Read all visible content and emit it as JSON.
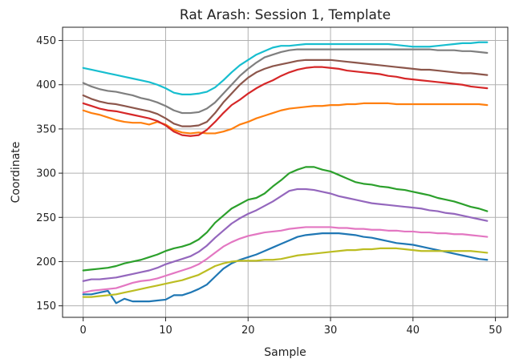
{
  "chart_data": {
    "type": "line",
    "title": "Rat Arash: Session 1, Template",
    "xlabel": "Sample",
    "ylabel": "Coordinate",
    "xlim": [
      -2.5,
      51.5
    ],
    "ylim": [
      137,
      465
    ],
    "xticks": [
      0,
      10,
      20,
      30,
      40,
      50
    ],
    "yticks": [
      150,
      200,
      250,
      300,
      350,
      400,
      450
    ],
    "grid": true,
    "x": [
      0,
      1,
      2,
      3,
      4,
      5,
      6,
      7,
      8,
      9,
      10,
      11,
      12,
      13,
      14,
      15,
      16,
      17,
      18,
      19,
      20,
      21,
      22,
      23,
      24,
      25,
      26,
      27,
      28,
      29,
      30,
      31,
      32,
      33,
      34,
      35,
      36,
      37,
      38,
      39,
      40,
      41,
      42,
      43,
      44,
      45,
      46,
      47,
      48,
      49
    ],
    "series": [
      {
        "color": "#1f77b4",
        "values": [
          163,
          163,
          165,
          167,
          153,
          158,
          155,
          155,
          155,
          156,
          157,
          162,
          162,
          165,
          169,
          174,
          183,
          192,
          198,
          202,
          205,
          208,
          212,
          216,
          220,
          224,
          228,
          230,
          231,
          232,
          232,
          232,
          231,
          230,
          228,
          227,
          225,
          223,
          221,
          220,
          219,
          217,
          215,
          213,
          211,
          209,
          207,
          205,
          203,
          202
        ]
      },
      {
        "color": "#ff7f0e",
        "values": [
          371,
          368,
          366,
          363,
          360,
          358,
          357,
          357,
          355,
          358,
          355,
          349,
          346,
          345,
          346,
          345,
          345,
          347,
          350,
          355,
          358,
          362,
          365,
          368,
          371,
          373,
          374,
          375,
          376,
          376,
          377,
          377,
          378,
          378,
          379,
          379,
          379,
          379,
          378,
          378,
          378,
          378,
          378,
          378,
          378,
          378,
          378,
          378,
          378,
          377
        ]
      },
      {
        "color": "#2ca02c",
        "values": [
          190,
          191,
          192,
          193,
          195,
          198,
          200,
          202,
          205,
          208,
          212,
          215,
          217,
          220,
          225,
          233,
          244,
          252,
          260,
          265,
          270,
          272,
          277,
          285,
          292,
          300,
          304,
          307,
          307,
          304,
          302,
          298,
          294,
          290,
          288,
          287,
          285,
          284,
          282,
          281,
          279,
          277,
          275,
          272,
          270,
          268,
          265,
          262,
          260,
          257
        ]
      },
      {
        "color": "#d62728",
        "values": [
          379,
          376,
          373,
          371,
          370,
          368,
          366,
          364,
          362,
          359,
          354,
          347,
          343,
          342,
          343,
          349,
          358,
          368,
          377,
          383,
          390,
          396,
          401,
          405,
          410,
          414,
          417,
          419,
          420,
          420,
          419,
          418,
          416,
          415,
          414,
          413,
          412,
          410,
          409,
          407,
          406,
          405,
          404,
          403,
          402,
          401,
          400,
          398,
          397,
          396
        ]
      },
      {
        "color": "#9467bd",
        "values": [
          178,
          180,
          180,
          181,
          182,
          184,
          186,
          188,
          190,
          193,
          197,
          200,
          203,
          206,
          211,
          218,
          227,
          235,
          243,
          249,
          254,
          258,
          263,
          268,
          274,
          280,
          282,
          282,
          281,
          279,
          277,
          274,
          272,
          270,
          268,
          266,
          265,
          264,
          263,
          262,
          261,
          260,
          258,
          257,
          255,
          254,
          252,
          250,
          248,
          246
        ]
      },
      {
        "color": "#8c564b",
        "values": [
          388,
          384,
          381,
          379,
          378,
          376,
          374,
          372,
          370,
          367,
          362,
          356,
          353,
          353,
          354,
          358,
          368,
          380,
          390,
          400,
          408,
          414,
          418,
          421,
          423,
          425,
          427,
          428,
          428,
          428,
          428,
          427,
          426,
          425,
          424,
          423,
          422,
          421,
          420,
          419,
          418,
          417,
          417,
          416,
          415,
          414,
          413,
          413,
          412,
          411
        ]
      },
      {
        "color": "#e377c2",
        "values": [
          165,
          167,
          168,
          169,
          170,
          173,
          176,
          178,
          179,
          181,
          184,
          187,
          190,
          193,
          197,
          203,
          210,
          217,
          222,
          226,
          229,
          231,
          233,
          234,
          235,
          237,
          238,
          239,
          239,
          239,
          239,
          238,
          238,
          237,
          237,
          236,
          236,
          235,
          235,
          234,
          234,
          233,
          233,
          232,
          232,
          231,
          231,
          230,
          229,
          228
        ]
      },
      {
        "color": "#7f7f7f",
        "values": [
          402,
          398,
          395,
          393,
          392,
          390,
          388,
          385,
          383,
          380,
          376,
          371,
          368,
          368,
          369,
          373,
          380,
          390,
          400,
          410,
          418,
          425,
          431,
          434,
          437,
          439,
          440,
          440,
          440,
          440,
          440,
          440,
          440,
          440,
          440,
          440,
          440,
          440,
          440,
          440,
          440,
          440,
          440,
          439,
          439,
          439,
          438,
          438,
          437,
          436
        ]
      },
      {
        "color": "#bcbd22",
        "values": [
          160,
          160,
          161,
          162,
          163,
          165,
          167,
          169,
          171,
          173,
          175,
          177,
          179,
          182,
          185,
          190,
          195,
          198,
          200,
          201,
          201,
          201,
          202,
          202,
          203,
          205,
          207,
          208,
          209,
          210,
          211,
          212,
          213,
          213,
          214,
          214,
          215,
          215,
          215,
          214,
          213,
          212,
          212,
          212,
          212,
          212,
          212,
          212,
          211,
          210
        ]
      },
      {
        "color": "#17becf",
        "values": [
          419,
          417,
          415,
          413,
          411,
          409,
          407,
          405,
          403,
          400,
          396,
          391,
          389,
          389,
          390,
          392,
          397,
          405,
          414,
          422,
          428,
          434,
          438,
          442,
          444,
          444,
          445,
          446,
          446,
          446,
          446,
          446,
          446,
          446,
          446,
          446,
          446,
          446,
          445,
          444,
          443,
          443,
          443,
          444,
          445,
          446,
          447,
          447,
          448,
          448
        ]
      }
    ]
  }
}
